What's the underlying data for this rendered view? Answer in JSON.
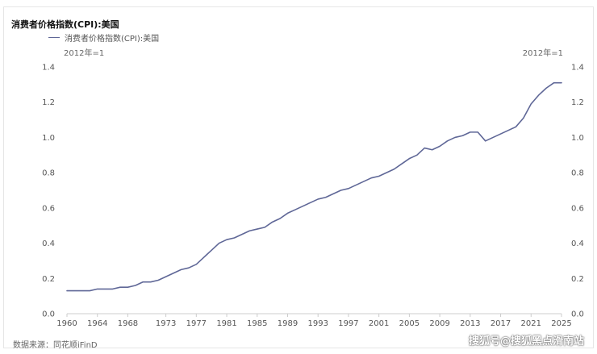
{
  "title": "消费者价格指数(CPI):美国",
  "legend_label": "消费者价格指数(CPI):美国",
  "unit_left": "2012年=1",
  "unit_right": "2012年=1",
  "source": "数据来源：同花顺iFinD",
  "watermark": "搜狐号@搜狐黑点滑南站",
  "colors": {
    "series": "#5f6797",
    "axis": "#cccccc"
  },
  "chart_data": {
    "type": "line",
    "title": "消费者价格指数(CPI):美国",
    "xlabel": "",
    "ylabel": "",
    "xlim": [
      1960,
      2025
    ],
    "ylim": [
      0,
      1.4
    ],
    "grid": false,
    "legend": "top-left",
    "x_ticks": [
      1960,
      1964,
      1968,
      1973,
      1977,
      1981,
      1985,
      1989,
      1993,
      1997,
      2001,
      2005,
      2009,
      2013,
      2017,
      2021,
      2025
    ],
    "y_ticks": [
      0.0,
      0.2,
      0.4,
      0.6,
      0.8,
      1.0,
      1.2,
      1.4
    ],
    "series": [
      {
        "name": "消费者价格指数(CPI):美国",
        "x": [
          1960,
          1961,
          1962,
          1963,
          1964,
          1965,
          1966,
          1967,
          1968,
          1969,
          1970,
          1971,
          1972,
          1973,
          1974,
          1975,
          1976,
          1977,
          1978,
          1979,
          1980,
          1981,
          1982,
          1983,
          1984,
          1985,
          1986,
          1987,
          1988,
          1989,
          1990,
          1991,
          1992,
          1993,
          1994,
          1995,
          1996,
          1997,
          1998,
          1999,
          2000,
          2001,
          2002,
          2003,
          2004,
          2005,
          2006,
          2007,
          2008,
          2009,
          2010,
          2011,
          2012,
          2013,
          2014,
          2015,
          2016,
          2017,
          2018,
          2019,
          2020,
          2021,
          2022,
          2023,
          2024,
          2025
        ],
        "values": [
          0.13,
          0.13,
          0.13,
          0.13,
          0.14,
          0.14,
          0.14,
          0.15,
          0.15,
          0.16,
          0.18,
          0.18,
          0.19,
          0.21,
          0.23,
          0.25,
          0.26,
          0.28,
          0.32,
          0.36,
          0.4,
          0.42,
          0.43,
          0.45,
          0.47,
          0.48,
          0.49,
          0.52,
          0.54,
          0.57,
          0.59,
          0.61,
          0.63,
          0.65,
          0.66,
          0.68,
          0.7,
          0.71,
          0.73,
          0.75,
          0.77,
          0.78,
          0.8,
          0.82,
          0.85,
          0.88,
          0.9,
          0.94,
          0.93,
          0.95,
          0.98,
          1.0,
          1.01,
          1.03,
          1.03,
          0.98,
          1.0,
          1.02,
          1.04,
          1.06,
          1.11,
          1.19,
          1.24,
          1.28,
          1.31,
          1.31
        ]
      }
    ]
  }
}
